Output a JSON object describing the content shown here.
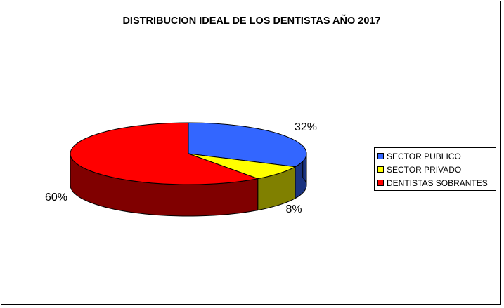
{
  "chart_data": {
    "type": "pie",
    "title": "DISTRIBUCION IDEAL DE LOS DENTISTAS AÑO 2017",
    "categories": [
      "SECTOR PUBLICO",
      "SECTOR PRIVADO",
      "DENTISTAS SOBRANTES"
    ],
    "values": [
      32,
      8,
      60
    ],
    "labels": [
      "32%",
      "8%",
      "60%"
    ],
    "colors": [
      "#3366FF",
      "#FFFF00",
      "#FF0000"
    ],
    "side_colors": [
      "#1A3380",
      "#808000",
      "#800000"
    ],
    "legend_position": "right",
    "style": "3d"
  }
}
